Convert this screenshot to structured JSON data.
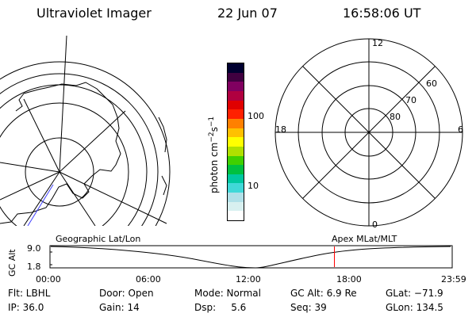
{
  "header": {
    "title": "Ultraviolet Imager",
    "date": "22 Jun 07",
    "time": "16:58:06 UT"
  },
  "colorbar": {
    "label": "photon cm",
    "label_exp1": "−2",
    "label_mid": "s",
    "label_exp2": "−1",
    "ticks": [
      {
        "label": "100",
        "value": 100
      },
      {
        "label": "10",
        "value": 10
      }
    ],
    "colors_bottom_to_top": [
      "#ffffff",
      "#d8f0f0",
      "#b0e0e8",
      "#40d8d8",
      "#00c8a0",
      "#00c040",
      "#40d000",
      "#b0e000",
      "#ffff00",
      "#ffc000",
      "#ff8000",
      "#ff2000",
      "#e00000",
      "#b00040",
      "#800060",
      "#400040",
      "#000030"
    ]
  },
  "polar_plot": {
    "labels": {
      "top": "12",
      "right": "6",
      "bottom": "0",
      "left": "18"
    },
    "rings": [
      "60",
      "70",
      "80"
    ]
  },
  "timeline": {
    "left_label": "Geographic Lat/Lon",
    "right_label": "Apex MLat/MLT",
    "y_axis_label": "GC Alt",
    "y_ticks": [
      "9.0",
      "1.8"
    ],
    "x_ticks": [
      "00:00",
      "06:00",
      "12:00",
      "18:00",
      "23:59"
    ],
    "marker_time_hours": 16.97,
    "marker_color": "#ff0000"
  },
  "info": {
    "row1": {
      "filter": "Flt: LBHL",
      "door": "Door: Open",
      "mode": "Mode: Normal",
      "gc_alt": "GC Alt: 6.9 Re",
      "glat": "GLat: −71.9"
    },
    "row2": {
      "ip": "IP: 36.0",
      "gain": "Gain: 14",
      "dsp": "Dsp:     5.6",
      "seq": "Seq: 39",
      "glon": "GLon: 134.5"
    }
  }
}
